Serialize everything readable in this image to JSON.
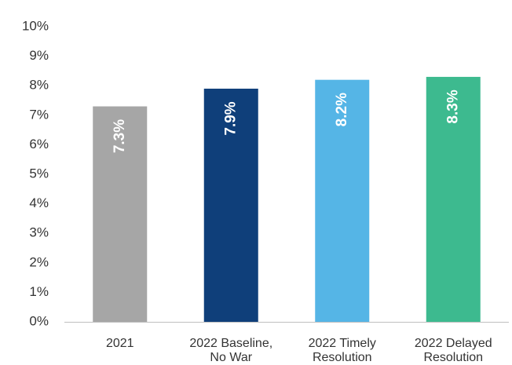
{
  "chart_data": {
    "type": "bar",
    "categories": [
      [
        "2021"
      ],
      [
        "2022 Baseline,",
        "No War"
      ],
      [
        "2022 Timely",
        "Resolution"
      ],
      [
        "2022 Delayed",
        "Resolution"
      ]
    ],
    "values": [
      7.3,
      7.9,
      8.2,
      8.3
    ],
    "data_labels": [
      "7.3%",
      "7.9%",
      "8.2%",
      "8.3%"
    ],
    "colors": [
      "#a6a6a6",
      "#0f3f7a",
      "#55b5e6",
      "#3dba8f"
    ],
    "ylim": [
      0,
      10
    ],
    "yticks": [
      0,
      1,
      2,
      3,
      4,
      5,
      6,
      7,
      8,
      9,
      10
    ],
    "ytick_labels": [
      "0%",
      "1%",
      "2%",
      "3%",
      "4%",
      "5%",
      "6%",
      "7%",
      "8%",
      "9%",
      "10%"
    ],
    "grid": false,
    "legend": "none"
  }
}
